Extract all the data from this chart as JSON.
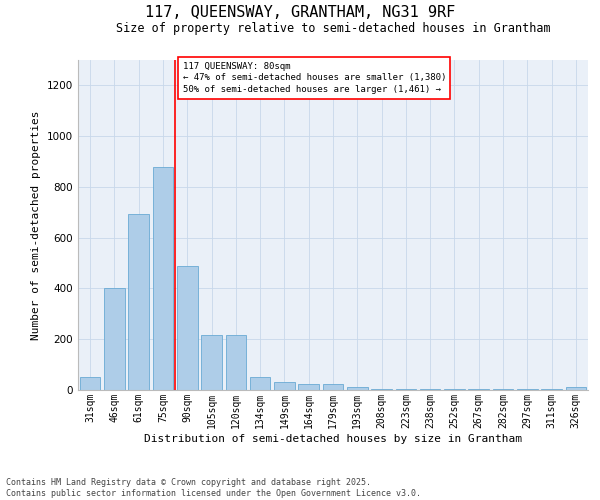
{
  "title": "117, QUEENSWAY, GRANTHAM, NG31 9RF",
  "subtitle": "Size of property relative to semi-detached houses in Grantham",
  "xlabel": "Distribution of semi-detached houses by size in Grantham",
  "ylabel": "Number of semi-detached properties",
  "categories": [
    "31sqm",
    "46sqm",
    "61sqm",
    "75sqm",
    "90sqm",
    "105sqm",
    "120sqm",
    "134sqm",
    "149sqm",
    "164sqm",
    "179sqm",
    "193sqm",
    "208sqm",
    "223sqm",
    "238sqm",
    "252sqm",
    "267sqm",
    "282sqm",
    "297sqm",
    "311sqm",
    "326sqm"
  ],
  "values": [
    50,
    400,
    695,
    880,
    490,
    215,
    215,
    50,
    30,
    25,
    25,
    10,
    5,
    5,
    5,
    5,
    5,
    2,
    2,
    2,
    10
  ],
  "bar_color": "#aecde8",
  "bar_edge_color": "#6aaad4",
  "grid_color": "#c8d8ea",
  "background_color": "#eaf0f8",
  "red_line_x": 3.5,
  "annotation_title": "117 QUEENSWAY: 80sqm",
  "annotation_line1": "← 47% of semi-detached houses are smaller (1,380)",
  "annotation_line2": "50% of semi-detached houses are larger (1,461) →",
  "footer_line1": "Contains HM Land Registry data © Crown copyright and database right 2025.",
  "footer_line2": "Contains public sector information licensed under the Open Government Licence v3.0.",
  "ylim": [
    0,
    1300
  ],
  "yticks": [
    0,
    200,
    400,
    600,
    800,
    1000,
    1200
  ],
  "title_fontsize": 11,
  "subtitle_fontsize": 8.5,
  "axis_label_fontsize": 8,
  "tick_fontsize": 7,
  "annotation_fontsize": 6.5,
  "footer_fontsize": 6
}
